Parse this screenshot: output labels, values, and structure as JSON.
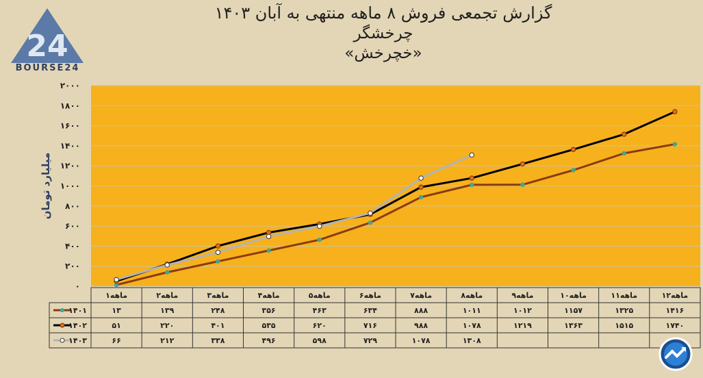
{
  "header": {
    "title": "گزارش تجمعی فروش ۸ ماهه منتهی به آبان ۱۴۰۳",
    "company": "چرخشگر",
    "symbol": "«خچرخش»"
  },
  "logo": {
    "text": "BOURSE24",
    "mark": "24"
  },
  "badge": {
    "icon": "trend-arrow-icon"
  },
  "colors": {
    "plot_bg": "#f6b11c",
    "page_bg": "#e3d6b6",
    "series_1401": "#8b3a0f",
    "series_1402": "#000000",
    "series_1403": "#b3b3b3",
    "marker_1401": "#3fa59a",
    "marker_1402": "#e0701e",
    "marker_1403": "#ffffff"
  },
  "chart_data": {
    "type": "line",
    "ylabel": "میلیارد تومان",
    "ylim": [
      0,
      2000
    ],
    "yticks": [
      "۰",
      "۲۰۰",
      "۴۰۰",
      "۶۰۰",
      "۸۰۰",
      "۱۰۰۰",
      "۱۲۰۰",
      "۱۴۰۰",
      "۱۶۰۰",
      "۱۸۰۰",
      "۲۰۰۰"
    ],
    "ytick_values": [
      0,
      200,
      400,
      600,
      800,
      1000,
      1200,
      1400,
      1600,
      1800,
      2000
    ],
    "categories": [
      "۱ماهه",
      "۲ماهه",
      "۳ماهه",
      "۴ماهه",
      "۵ماهه",
      "۶ماهه",
      "۷ماهه",
      "۸ماهه",
      "۹ماهه",
      "۱۰ماهه",
      "۱۱ماهه",
      "۱۲ماهه"
    ],
    "series": [
      {
        "name": "۱۴۰۱",
        "values": [
          13,
          139,
          248,
          356,
          463,
          634,
          888,
          1011,
          1012,
          1157,
          1325,
          1416
        ],
        "labels": [
          "۱۳",
          "۱۳۹",
          "۲۴۸",
          "۳۵۶",
          "۴۶۳",
          "۶۳۴",
          "۸۸۸",
          "۱۰۱۱",
          "۱۰۱۲",
          "۱۱۵۷",
          "۱۳۲۵",
          "۱۴۱۶"
        ]
      },
      {
        "name": "۱۴۰۲",
        "values": [
          51,
          220,
          401,
          535,
          620,
          716,
          988,
          1078,
          1219,
          1363,
          1515,
          1740
        ],
        "labels": [
          "۵۱",
          "۲۲۰",
          "۴۰۱",
          "۵۳۵",
          "۶۲۰",
          "۷۱۶",
          "۹۸۸",
          "۱۰۷۸",
          "۱۲۱۹",
          "۱۳۶۳",
          "۱۵۱۵",
          "۱۷۴۰"
        ]
      },
      {
        "name": "۱۴۰۳",
        "values": [
          66,
          212,
          338,
          496,
          598,
          729,
          1078,
          1308,
          null,
          null,
          null,
          null
        ],
        "labels": [
          "۶۶",
          "۲۱۲",
          "۳۳۸",
          "۴۹۶",
          "۵۹۸",
          "۷۲۹",
          "۱۰۷۸",
          "۱۳۰۸",
          "",
          "",
          "",
          ""
        ]
      }
    ],
    "grid": true,
    "legend": "data-table-left"
  }
}
